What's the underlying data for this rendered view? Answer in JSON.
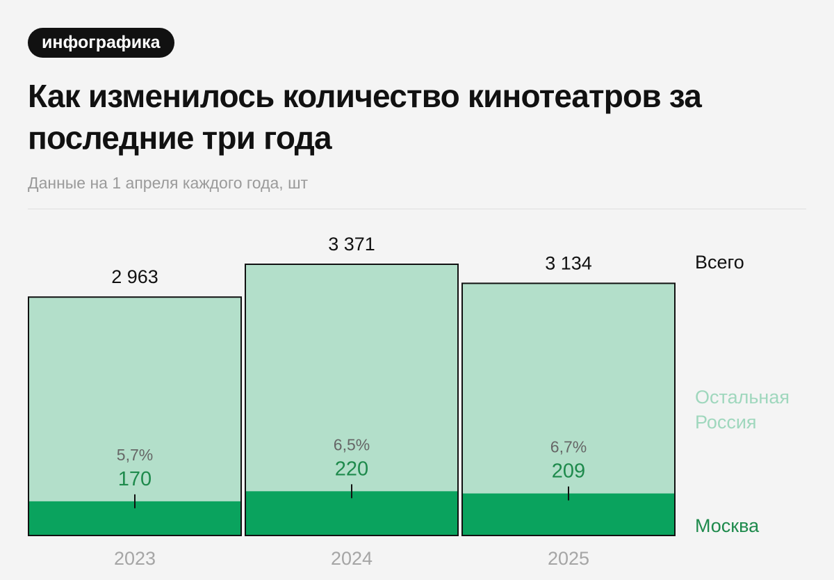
{
  "badge": "инфографика",
  "title": "Как изменилось количество кинотеатров за последние три года",
  "subtitle": "Данные на 1 апреля каждого года, шт",
  "colors": {
    "rest": "#b3dfca",
    "moscow": "#0aa35e",
    "moscow_text": "#1e8a4c",
    "rest_text": "#9fd7bd",
    "axis_text": "#a5a5a5",
    "pct_text": "#666666"
  },
  "chart_data": {
    "type": "bar",
    "stacked": true,
    "categories": [
      "2023",
      "2024",
      "2025"
    ],
    "totals": [
      2963,
      3371,
      3134
    ],
    "total_labels": [
      "2 963",
      "3 371",
      "3 134"
    ],
    "moscow_shares": [
      "5,7%",
      "6,5%",
      "6,7%"
    ],
    "series": [
      {
        "name": "Москва",
        "values": [
          170,
          220,
          209
        ]
      },
      {
        "name": "Остальная Россия",
        "values": [
          2793,
          3151,
          2925
        ]
      }
    ],
    "legend": {
      "total": "Всего",
      "rest": [
        "Остальная",
        "Россия"
      ],
      "moscow": "Москва"
    },
    "legend_position": "right",
    "grid": false
  }
}
